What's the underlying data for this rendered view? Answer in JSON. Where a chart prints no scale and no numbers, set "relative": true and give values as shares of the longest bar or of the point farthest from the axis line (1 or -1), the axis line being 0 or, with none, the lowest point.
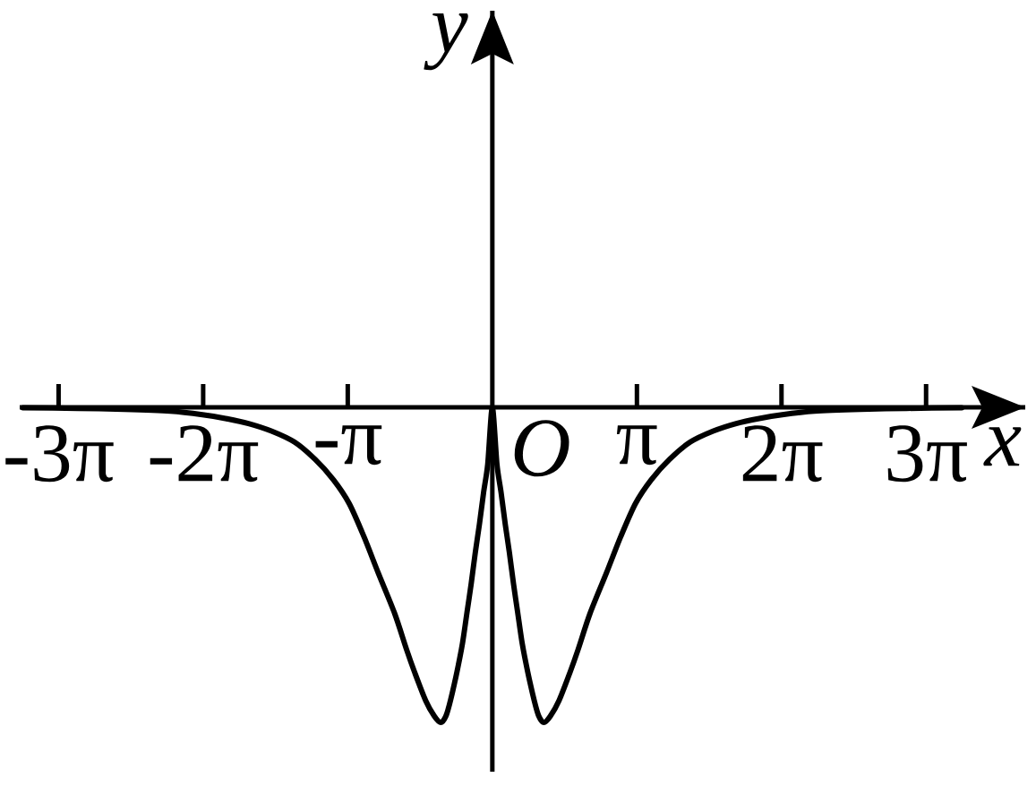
{
  "chart_data": {
    "type": "line",
    "xlabel": "x",
    "ylabel": "y",
    "relative": true,
    "color": "#000000",
    "annotations": [
      {
        "text": "O",
        "x": 0,
        "y": 0
      }
    ],
    "xlim": [
      -10.27,
      11.58
    ],
    "xticks": [
      {
        "value": -9.4248,
        "label": "-3π"
      },
      {
        "value": -6.2832,
        "label": "-2π"
      },
      {
        "value": -3.1416,
        "label": "-π"
      },
      {
        "value": 3.1416,
        "label": "π"
      },
      {
        "value": 6.2832,
        "label": "2π"
      },
      {
        "value": 9.4248,
        "label": "3π"
      }
    ],
    "x": [
      -10.2,
      -9.0,
      -8.0,
      -7.0,
      -6.3,
      -5.8,
      -5.3,
      -4.8,
      -4.3,
      -3.85,
      -3.45,
      -3.11,
      -2.79,
      -2.48,
      -2.12,
      -1.86,
      -1.69,
      -1.45,
      -1.26,
      -1.12,
      -1.01,
      -0.91,
      -0.77,
      -0.65,
      -0.55,
      -0.46,
      -0.37,
      -0.28,
      -0.19,
      -0.1,
      0,
      0.1,
      0.19,
      0.28,
      0.37,
      0.46,
      0.55,
      0.65,
      0.77,
      0.91,
      1.01,
      1.12,
      1.26,
      1.45,
      1.69,
      1.86,
      2.12,
      2.48,
      2.79,
      3.11,
      3.45,
      3.85,
      4.3,
      4.8,
      5.3,
      5.8,
      6.3,
      7.0,
      8.0,
      9.0,
      10.2
    ],
    "values": [
      -0.001,
      -0.003,
      -0.006,
      -0.012,
      -0.023,
      -0.035,
      -0.051,
      -0.075,
      -0.11,
      -0.165,
      -0.23,
      -0.305,
      -0.41,
      -0.525,
      -0.655,
      -0.77,
      -0.84,
      -0.93,
      -0.98,
      -1.0,
      -0.98,
      -0.93,
      -0.84,
      -0.75,
      -0.65,
      -0.56,
      -0.46,
      -0.37,
      -0.27,
      -0.18,
      0,
      -0.18,
      -0.27,
      -0.37,
      -0.46,
      -0.56,
      -0.65,
      -0.75,
      -0.84,
      -0.93,
      -0.98,
      -1.0,
      -0.98,
      -0.93,
      -0.84,
      -0.77,
      -0.655,
      -0.525,
      -0.41,
      -0.305,
      -0.23,
      -0.165,
      -0.11,
      -0.075,
      -0.051,
      -0.035,
      -0.023,
      -0.012,
      -0.006,
      -0.003,
      -0.001
    ]
  }
}
